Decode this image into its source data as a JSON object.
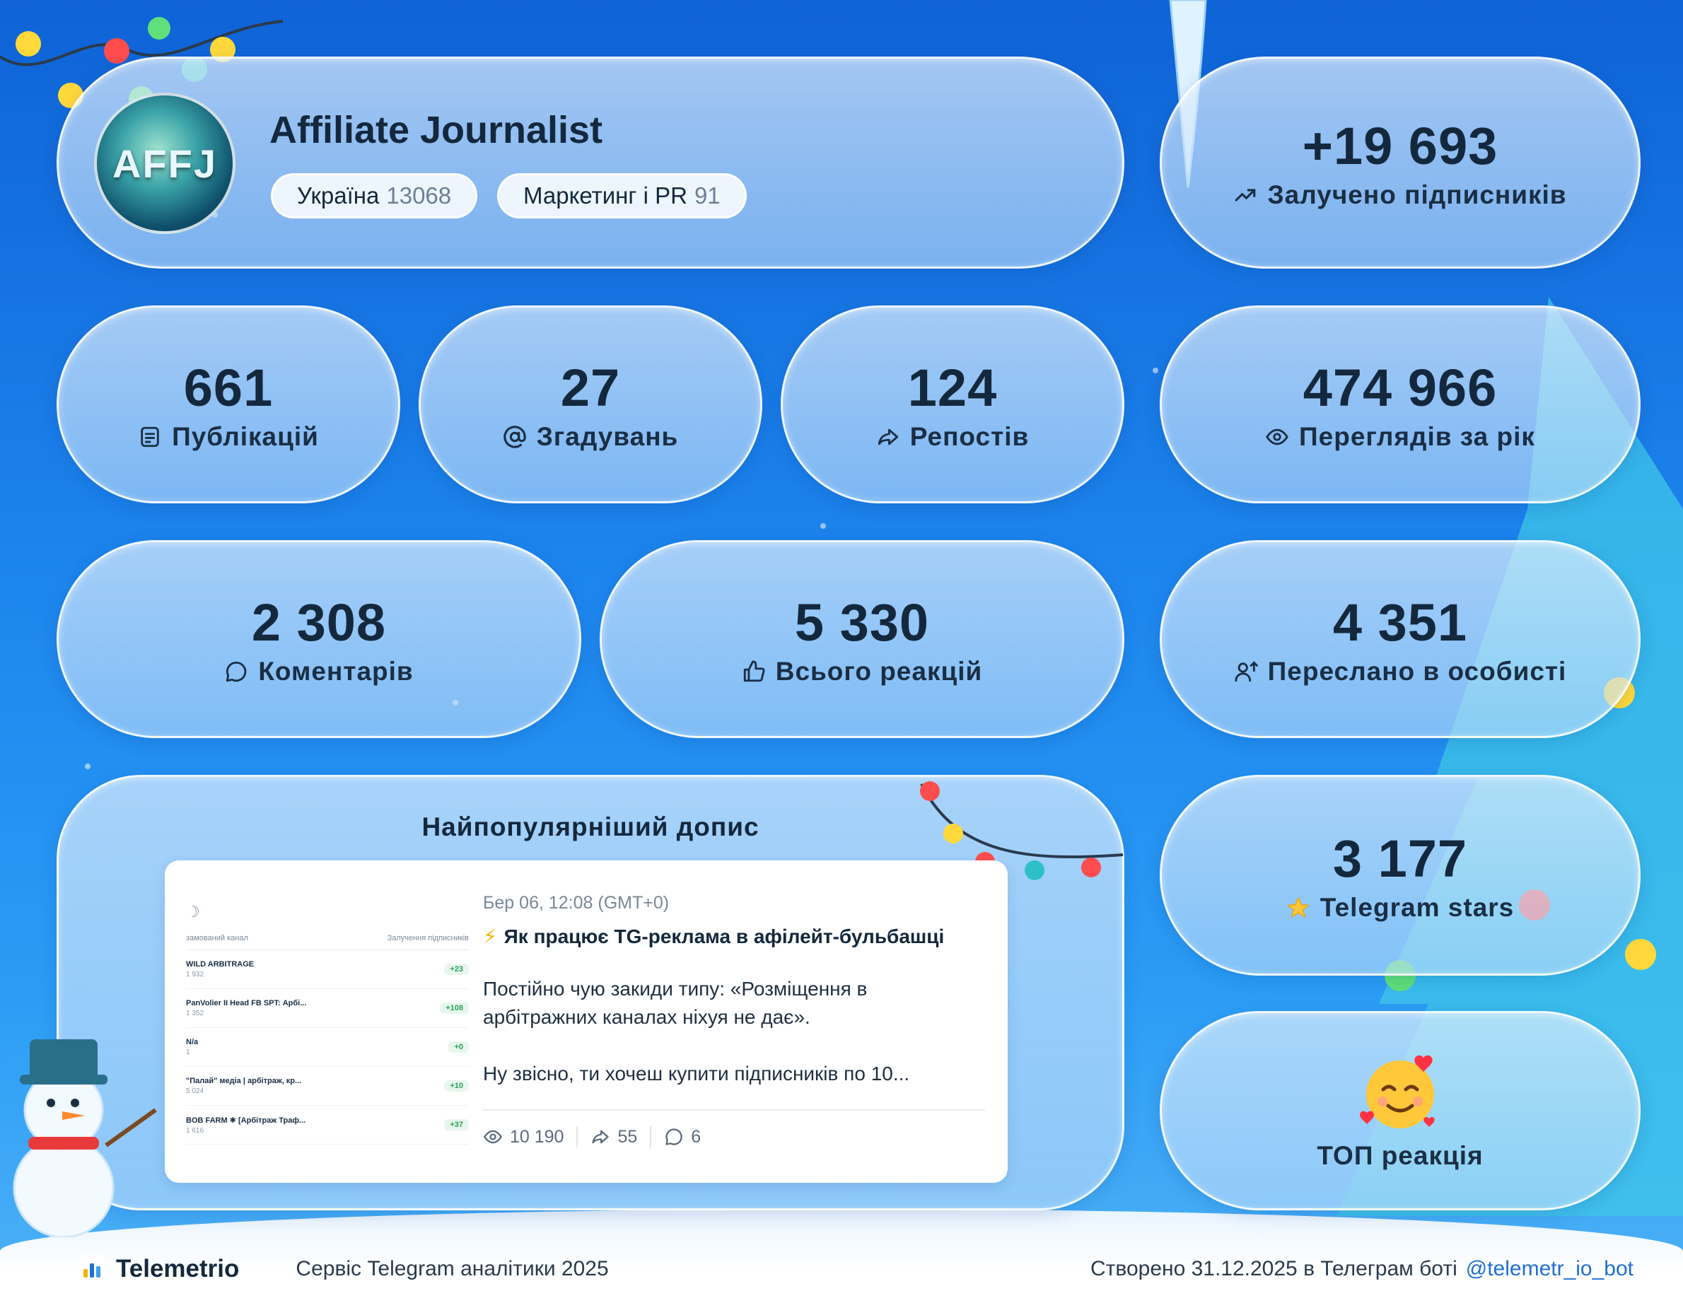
{
  "profile": {
    "title": "Affiliate Journalist",
    "avatar_text": "AFFJ",
    "chips": [
      {
        "label": "Україна",
        "value": "13068"
      },
      {
        "label": "Маркетинг і PR",
        "value": "91"
      }
    ]
  },
  "stats": {
    "subscribers": {
      "value": "+19 693",
      "label": "Залучено підписників",
      "icon": "trending-up-icon"
    },
    "publications": {
      "value": "661",
      "label": "Публікацій",
      "icon": "document-icon"
    },
    "mentions": {
      "value": "27",
      "label": "Згадувань",
      "icon": "at-icon"
    },
    "reposts": {
      "value": "124",
      "label": "Репостів",
      "icon": "share-icon"
    },
    "views": {
      "value": "474 966",
      "label": "Переглядів за рік",
      "icon": "eye-icon"
    },
    "comments": {
      "value": "2 308",
      "label": "Коментарів",
      "icon": "comment-icon"
    },
    "reactions": {
      "value": "5 330",
      "label": "Всього реакцій",
      "icon": "thumbs-up-icon"
    },
    "forwarded": {
      "value": "4 351",
      "label": "Переслано в особисті",
      "icon": "user-forward-icon"
    },
    "stars": {
      "value": "3 177",
      "label": "Telegram stars",
      "icon": "star-icon"
    },
    "top_reaction": {
      "label": "ТОП реакція",
      "icon": "smiling-face-with-hearts-icon"
    }
  },
  "popular_post": {
    "title": "Найпопулярніший допис",
    "date": "Бер 06, 12:08 (GMT+0)",
    "headline": "Як працює TG-реклама в афілейт-бульбашці",
    "paragraphs": [
      "Постійно чую закиди типу: «Розміщення в арбітражних каналах ніхуя не дає».",
      "Ну звісно, ти хочеш купити підписників по 10..."
    ],
    "views": "10 190",
    "shares": "55",
    "comments": "6",
    "mini_table": {
      "head_left": "замований канал",
      "head_right": "Залучення підписників",
      "rows": [
        {
          "name": "WILD ARBITRAGE",
          "sub": "1 932",
          "badge": "+23"
        },
        {
          "name": "PanVolier II Head FB SPT: Арбі...",
          "sub": "1 352",
          "badge": "+108"
        },
        {
          "name": "N/a",
          "sub": "1",
          "badge": "+0"
        },
        {
          "name": "\"Палай\" медіа | арбітраж, кр...",
          "sub": "5 024",
          "badge": "+10"
        },
        {
          "name": "BOB FARM ✱ [Арбітраж Траф...",
          "sub": "1 616",
          "badge": "+37"
        }
      ]
    }
  },
  "footer": {
    "brand": "Telemetrio",
    "tagline": "Сервіс Telegram аналітики 2025",
    "created": "Створено 31.12.2025 в Телеграм боті",
    "bot": "@telemetr_io_bot"
  },
  "colors": {
    "accent": "#1f6fd6",
    "text": "#14283d",
    "badge_green": "#27a35a"
  }
}
